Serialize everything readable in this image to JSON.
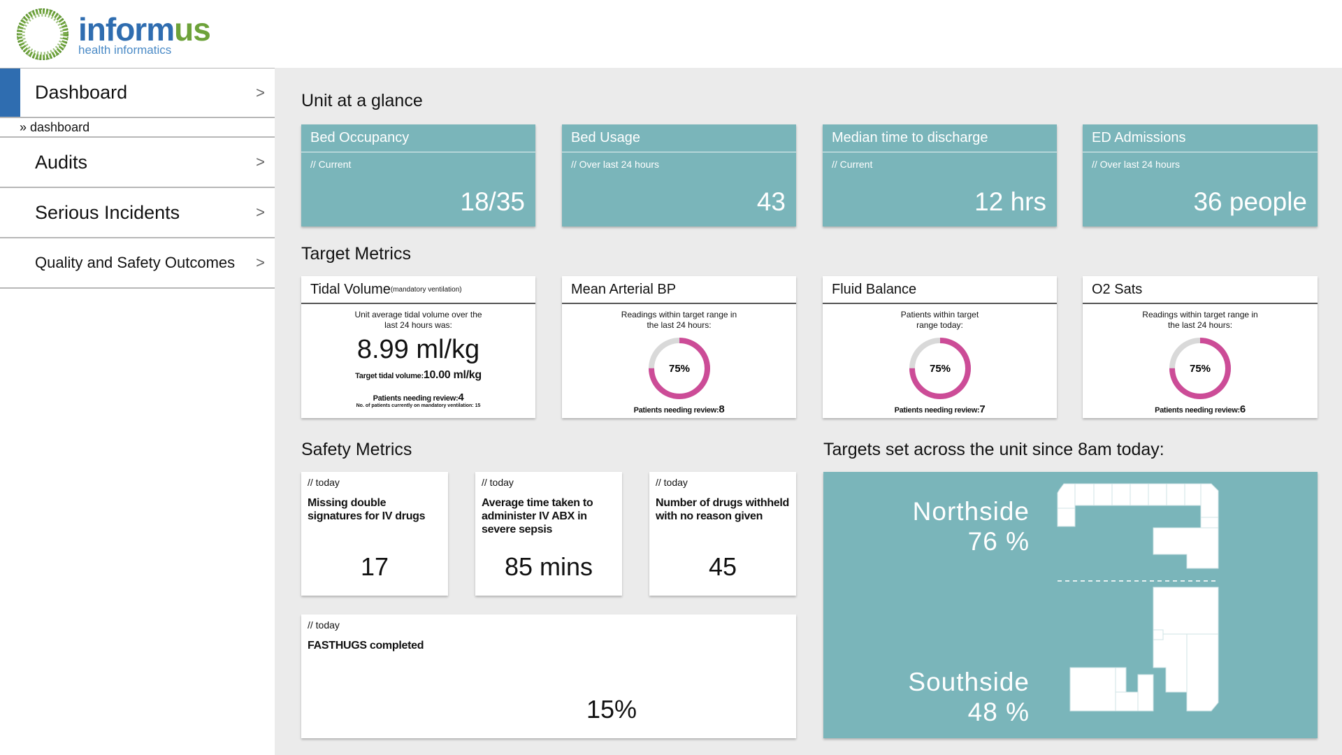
{
  "brand": {
    "name_part1": "inform",
    "name_part2": "us",
    "subtitle": "health informatics"
  },
  "sidebar": {
    "items": [
      {
        "label": "Dashboard",
        "chevron": ">"
      },
      {
        "label": "Audits",
        "chevron": ">"
      },
      {
        "label": "Serious Incidents",
        "chevron": ">"
      },
      {
        "label": "Quality and Safety Outcomes",
        "chevron": ">"
      }
    ],
    "breadcrumb": "» dashboard"
  },
  "glance": {
    "title": "Unit at a glance",
    "cards": [
      {
        "title": "Bed Occupancy",
        "period": "// Current",
        "value": "18/35"
      },
      {
        "title": "Bed Usage",
        "period": "// Over last 24 hours",
        "value": "43"
      },
      {
        "title": "Median time to discharge",
        "period": "// Current",
        "value": "12 hrs"
      },
      {
        "title": "ED Admissions",
        "period": "// Over last 24 hours",
        "value": "36 people"
      }
    ]
  },
  "targets": {
    "title": "Target Metrics",
    "tidal": {
      "title": "Tidal Volume",
      "title_small": "(mandatory ventilation)",
      "desc": "Unit average tidal volume over the last 24 hours was:",
      "value": "8.99 ml/kg",
      "target_label": "Target tidal volume:",
      "target_value": "10.00 ml/kg",
      "review_label": "Patients needing review:",
      "review_value": "4",
      "tiny": "No. of patients currently on mandatory ventilation: 15"
    },
    "map_bp": {
      "title": "Mean Arterial BP",
      "desc": "Readings within target range in the last 24 hours:",
      "percent_label": "75%",
      "percent": 0.75,
      "review_label": "Patients needing review:",
      "review_value": "8"
    },
    "fluid": {
      "title": "Fluid Balance",
      "desc": "Patients within target range today:",
      "percent_label": "75%",
      "percent": 0.75,
      "review_label": "Patients needing review:",
      "review_value": "7"
    },
    "o2": {
      "title": "O2 Sats",
      "desc": "Readings within target range in the last 24 hours:",
      "percent_label": "75%",
      "percent": 0.75,
      "review_label": "Patients needing review:",
      "review_value": "6"
    }
  },
  "safety": {
    "title": "Safety Metrics",
    "cards": [
      {
        "period": "// today",
        "title": "Missing double signatures for IV drugs",
        "value": "17"
      },
      {
        "period": "// today",
        "title": "Average time taken to administer IV ABX in severe sepsis",
        "value": "85 mins"
      },
      {
        "period": "// today",
        "title": "Number of drugs withheld with no reason given",
        "value": "45"
      },
      {
        "period": "// today",
        "title": "FASTHUGS completed",
        "value": "15%"
      }
    ]
  },
  "unit_targets": {
    "title": "Targets set across the unit since 8am today:",
    "northside": {
      "name": "Northside",
      "value": "76 %"
    },
    "southside": {
      "name": "Southside",
      "value": "48 %"
    }
  },
  "colors": {
    "teal": "#7ab5ba",
    "accent_blue": "#2f6db0",
    "donut_pink": "#cc4c97",
    "donut_grey": "#d9d9d9"
  }
}
